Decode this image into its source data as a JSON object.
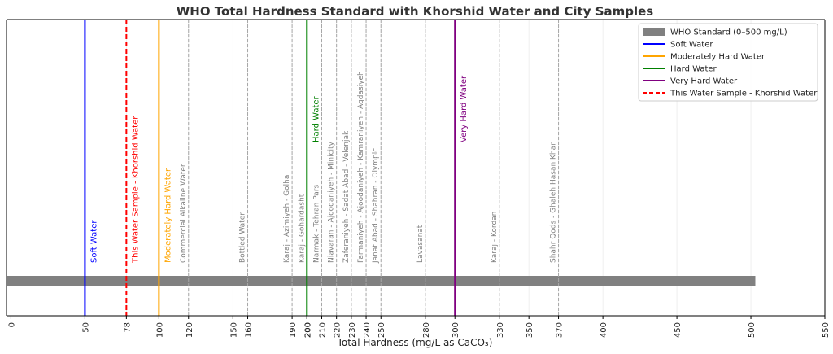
{
  "chart_data": {
    "type": "bar",
    "title": "WHO Total Hardness Standard with Khorshid Water and City Samples",
    "xlabel": "Total Hardness (mg/L as CaCO₃)",
    "ylabel": "",
    "xlim": [
      -3,
      550
    ],
    "grid": true,
    "legend_position": "top-right",
    "xticks": [
      "0",
      "50",
      "78",
      "100",
      "120",
      "150",
      "160",
      "190",
      "200",
      "200",
      "210",
      "220",
      "230",
      "240",
      "250",
      "280",
      "300",
      "330",
      "350",
      "370",
      "400",
      "450",
      "500",
      "550"
    ],
    "xtick_values": [
      0,
      50,
      78,
      100,
      120,
      150,
      160,
      190,
      200,
      200,
      210,
      220,
      230,
      240,
      250,
      280,
      300,
      330,
      350,
      370,
      400,
      450,
      500,
      550
    ],
    "standard_bar": {
      "name": "WHO Standard (0–500 mg/L)",
      "start": -3,
      "end": 503,
      "color": "#808080"
    },
    "reference_lines": [
      {
        "name": "Soft Water",
        "label": "Soft Water",
        "value": 50,
        "color": "#0000ff",
        "style": "solid"
      },
      {
        "name": "Moderately Hard Water",
        "label": "Moderately Hard Water",
        "value": 100,
        "color": "#ffa500",
        "style": "solid"
      },
      {
        "name": "Hard Water",
        "label": "Hard Water",
        "value": 200,
        "color": "#008000",
        "style": "solid"
      },
      {
        "name": "Very Hard Water",
        "label": "Very Hard Water",
        "value": 300,
        "color": "#800080",
        "style": "solid"
      },
      {
        "name": "This Water Sample - Khorshid Water",
        "label": "This Water Sample - Khorshid Water",
        "value": 78,
        "color": "#ff0000",
        "style": "dashed"
      }
    ],
    "samples": [
      {
        "label": "Commercial Alkaline Water",
        "value": 120
      },
      {
        "label": "Bottled Water",
        "value": 160
      },
      {
        "label": "Karaj - Azimiyeh - Golha",
        "value": 190
      },
      {
        "label": "Karaj - Gohardasht",
        "value": 200
      },
      {
        "label": "Narmak - Tehran Pars",
        "value": 210
      },
      {
        "label": "Niavaran - Ajoodaniyeh - Minicity",
        "value": 220
      },
      {
        "label": "Zaferaniyeh - Sadat Abad - Velenjak",
        "value": 230
      },
      {
        "label": "Farmaniyeh - Ajoodaniyeh - Kamraniyeh - Aqdasiyeh",
        "value": 240
      },
      {
        "label": "Janat Abad - Shahran - Olympic",
        "value": 250
      },
      {
        "label": "Lavasanat",
        "value": 280
      },
      {
        "label": "Karaj - Kordan",
        "value": 330
      },
      {
        "label": "Shahr Qods - Ghaleh Hasan Khan",
        "value": 370
      }
    ]
  }
}
